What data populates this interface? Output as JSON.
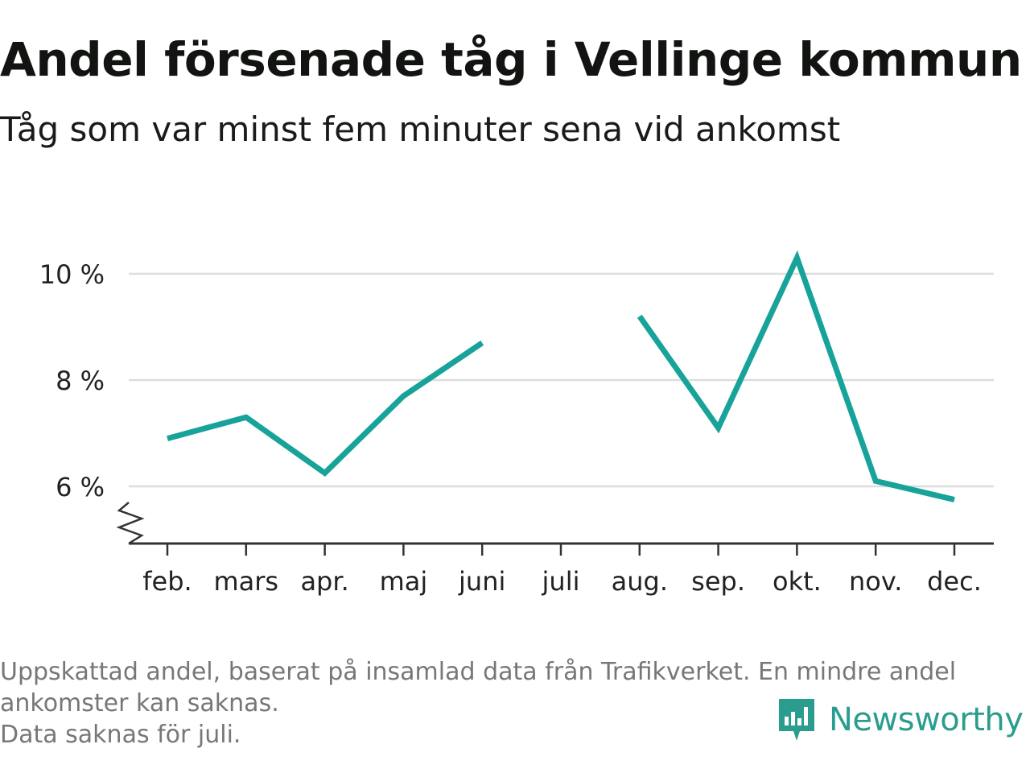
{
  "header": {
    "title": "Andel försenade tåg i Vellinge kommun",
    "subtitle": "Tåg som var minst fem minuter sena vid ankomst"
  },
  "footer": {
    "note_line1": "Uppskattad andel, baserat på insamlad data från Trafikverket. En mindre andel",
    "note_line2": "ankomster kan saknas.",
    "note_line3": "Data saknas för juli.",
    "brand": "Newsworthy"
  },
  "colors": {
    "line": "#17a399",
    "grid": "#dddddd",
    "axis": "#333333",
    "brand": "#2a9d8f"
  },
  "chart_data": {
    "type": "line",
    "title": "Andel försenade tåg i Vellinge kommun",
    "subtitle": "Tåg som var minst fem minuter sena vid ankomst",
    "xlabel": "",
    "ylabel": "",
    "categories": [
      "feb.",
      "mars",
      "apr.",
      "maj",
      "juni",
      "juli",
      "aug.",
      "sep.",
      "okt.",
      "nov.",
      "dec."
    ],
    "series": [
      {
        "values": [
          6.9,
          7.3,
          6.25,
          7.7,
          8.7,
          null,
          9.2,
          7.1,
          10.3,
          6.1,
          5.75
        ]
      }
    ],
    "yticks": [
      6,
      8,
      10
    ],
    "ytick_labels": [
      "6 %",
      "8 %",
      "10 %"
    ],
    "ylim": [
      5,
      10.3
    ],
    "axis_break": true,
    "grid": true,
    "legend": "none"
  }
}
